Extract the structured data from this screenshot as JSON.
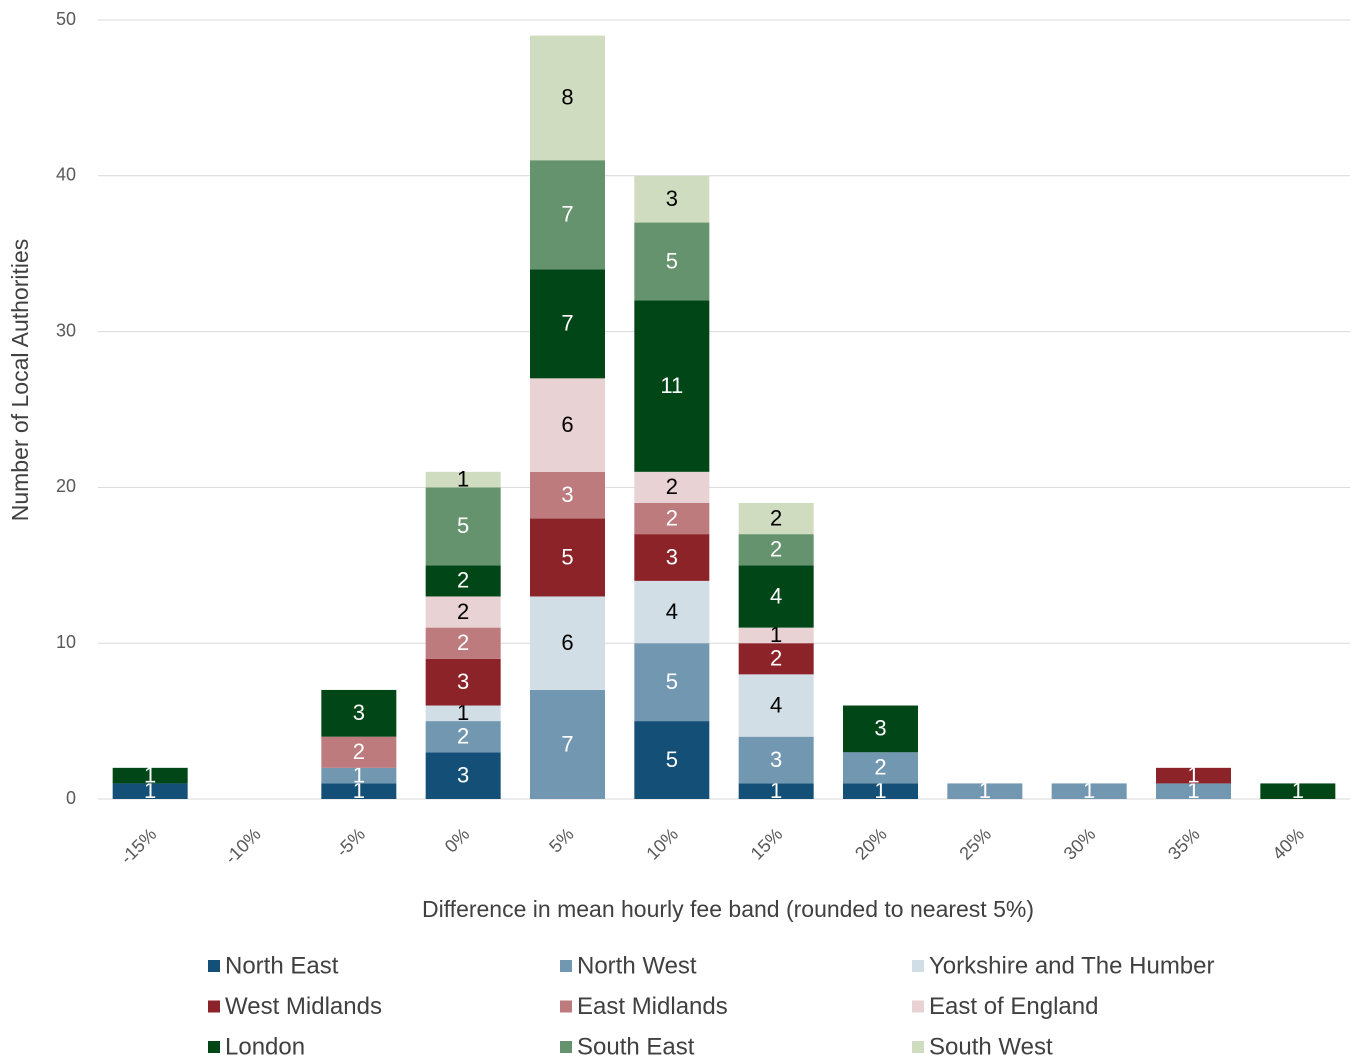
{
  "chart_data": {
    "type": "stacked_bar",
    "x_label": "Difference in mean hourly fee band (rounded to nearest 5%)",
    "y_label": "Number of Local Authorities",
    "categories": [
      "-15%",
      "-10%",
      "-5%",
      "0%",
      "5%",
      "10%",
      "15%",
      "20%",
      "25%",
      "30%",
      "35%",
      "40%"
    ],
    "series": [
      {
        "name": "North East",
        "color": "#134f76",
        "label_color": "#ffffff",
        "values": [
          1,
          null,
          1,
          3,
          null,
          5,
          1,
          1,
          null,
          null,
          null,
          null
        ]
      },
      {
        "name": "North West",
        "color": "#7297b1",
        "label_color": "#ffffff",
        "values": [
          null,
          null,
          1,
          2,
          7,
          5,
          3,
          2,
          1,
          1,
          1,
          null
        ]
      },
      {
        "name": "Yorkshire and The Humber",
        "color": "#d2dee6",
        "label_color": "#000000",
        "values": [
          null,
          null,
          null,
          1,
          6,
          4,
          4,
          null,
          null,
          null,
          null,
          null
        ]
      },
      {
        "name": "West Midlands",
        "color": "#8b2328",
        "label_color": "#ffffff",
        "values": [
          null,
          null,
          null,
          3,
          5,
          3,
          2,
          null,
          null,
          null,
          1,
          null
        ]
      },
      {
        "name": "East Midlands",
        "color": "#bd7b7e",
        "label_color": "#ffffff",
        "values": [
          null,
          null,
          2,
          2,
          3,
          2,
          null,
          null,
          null,
          null,
          null,
          null
        ]
      },
      {
        "name": "East of England",
        "color": "#e8d2d4",
        "label_color": "#000000",
        "values": [
          null,
          null,
          null,
          2,
          6,
          2,
          1,
          null,
          null,
          null,
          null,
          null
        ]
      },
      {
        "name": "London",
        "color": "#004616",
        "label_color": "#ffffff",
        "values": [
          1,
          null,
          3,
          2,
          7,
          11,
          4,
          3,
          null,
          null,
          null,
          1
        ]
      },
      {
        "name": "South East",
        "color": "#64936d",
        "label_color": "#ffffff",
        "values": [
          null,
          null,
          null,
          5,
          7,
          5,
          2,
          null,
          null,
          null,
          null,
          null
        ]
      },
      {
        "name": "South West",
        "color": "#d0dcc0",
        "label_color": "#000000",
        "values": [
          null,
          null,
          null,
          1,
          8,
          3,
          2,
          null,
          null,
          null,
          null,
          null
        ]
      }
    ],
    "ylim": [
      0,
      50
    ],
    "yticks": [
      0,
      10,
      20,
      30,
      40,
      50
    ],
    "grid": true
  }
}
